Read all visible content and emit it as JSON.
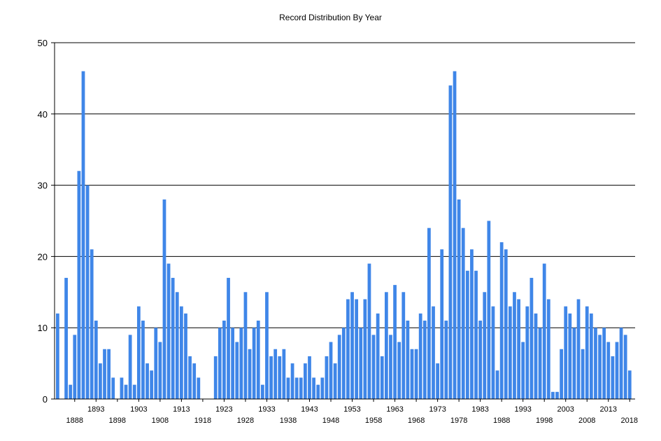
{
  "chart_data": {
    "type": "bar",
    "title": "Record Distribution By Year",
    "xlabel": "",
    "ylabel": "",
    "ylim": [
      0,
      50
    ],
    "yticks": [
      0,
      10,
      20,
      30,
      40,
      50
    ],
    "grid": "horizontal",
    "bar_color": "#3f86e8",
    "x_start": 1884,
    "x_end": 2018,
    "xtick_labels": [
      "1888",
      "1893",
      "1898",
      "1903",
      "1908",
      "1913",
      "1918",
      "1923",
      "1928",
      "1933",
      "1938",
      "1943",
      "1948",
      "1953",
      "1958",
      "1963",
      "1968",
      "1973",
      "1978",
      "1983",
      "1988",
      "1993",
      "1998",
      "2003",
      "2008",
      "2013",
      "2018"
    ],
    "points": [
      {
        "year": 1884,
        "value": 12
      },
      {
        "year": 1886,
        "value": 17
      },
      {
        "year": 1887,
        "value": 2
      },
      {
        "year": 1888,
        "value": 9
      },
      {
        "year": 1889,
        "value": 32
      },
      {
        "year": 1890,
        "value": 46
      },
      {
        "year": 1891,
        "value": 30
      },
      {
        "year": 1892,
        "value": 21
      },
      {
        "year": 1893,
        "value": 11
      },
      {
        "year": 1894,
        "value": 5
      },
      {
        "year": 1895,
        "value": 7
      },
      {
        "year": 1896,
        "value": 7
      },
      {
        "year": 1897,
        "value": 3
      },
      {
        "year": 1899,
        "value": 3
      },
      {
        "year": 1900,
        "value": 2
      },
      {
        "year": 1901,
        "value": 9
      },
      {
        "year": 1902,
        "value": 2
      },
      {
        "year": 1903,
        "value": 13
      },
      {
        "year": 1904,
        "value": 11
      },
      {
        "year": 1905,
        "value": 5
      },
      {
        "year": 1906,
        "value": 4
      },
      {
        "year": 1907,
        "value": 10
      },
      {
        "year": 1908,
        "value": 8
      },
      {
        "year": 1909,
        "value": 28
      },
      {
        "year": 1910,
        "value": 19
      },
      {
        "year": 1911,
        "value": 17
      },
      {
        "year": 1912,
        "value": 15
      },
      {
        "year": 1913,
        "value": 13
      },
      {
        "year": 1914,
        "value": 12
      },
      {
        "year": 1915,
        "value": 6
      },
      {
        "year": 1916,
        "value": 5
      },
      {
        "year": 1917,
        "value": 3
      },
      {
        "year": 1921,
        "value": 6
      },
      {
        "year": 1922,
        "value": 10
      },
      {
        "year": 1923,
        "value": 11
      },
      {
        "year": 1924,
        "value": 17
      },
      {
        "year": 1925,
        "value": 10
      },
      {
        "year": 1926,
        "value": 8
      },
      {
        "year": 1927,
        "value": 10
      },
      {
        "year": 1928,
        "value": 15
      },
      {
        "year": 1929,
        "value": 7
      },
      {
        "year": 1930,
        "value": 10
      },
      {
        "year": 1931,
        "value": 11
      },
      {
        "year": 1932,
        "value": 2
      },
      {
        "year": 1933,
        "value": 15
      },
      {
        "year": 1934,
        "value": 6
      },
      {
        "year": 1935,
        "value": 7
      },
      {
        "year": 1936,
        "value": 6
      },
      {
        "year": 1937,
        "value": 7
      },
      {
        "year": 1938,
        "value": 3
      },
      {
        "year": 1939,
        "value": 5
      },
      {
        "year": 1940,
        "value": 3
      },
      {
        "year": 1941,
        "value": 3
      },
      {
        "year": 1942,
        "value": 5
      },
      {
        "year": 1943,
        "value": 6
      },
      {
        "year": 1944,
        "value": 3
      },
      {
        "year": 1945,
        "value": 2
      },
      {
        "year": 1946,
        "value": 3
      },
      {
        "year": 1947,
        "value": 6
      },
      {
        "year": 1948,
        "value": 8
      },
      {
        "year": 1949,
        "value": 5
      },
      {
        "year": 1950,
        "value": 9
      },
      {
        "year": 1951,
        "value": 10
      },
      {
        "year": 1952,
        "value": 14
      },
      {
        "year": 1953,
        "value": 15
      },
      {
        "year": 1954,
        "value": 14
      },
      {
        "year": 1955,
        "value": 10
      },
      {
        "year": 1956,
        "value": 14
      },
      {
        "year": 1957,
        "value": 19
      },
      {
        "year": 1958,
        "value": 9
      },
      {
        "year": 1959,
        "value": 12
      },
      {
        "year": 1960,
        "value": 6
      },
      {
        "year": 1961,
        "value": 15
      },
      {
        "year": 1962,
        "value": 9
      },
      {
        "year": 1963,
        "value": 16
      },
      {
        "year": 1964,
        "value": 8
      },
      {
        "year": 1965,
        "value": 15
      },
      {
        "year": 1966,
        "value": 11
      },
      {
        "year": 1967,
        "value": 7
      },
      {
        "year": 1968,
        "value": 7
      },
      {
        "year": 1969,
        "value": 12
      },
      {
        "year": 1970,
        "value": 11
      },
      {
        "year": 1971,
        "value": 24
      },
      {
        "year": 1972,
        "value": 13
      },
      {
        "year": 1973,
        "value": 5
      },
      {
        "year": 1974,
        "value": 21
      },
      {
        "year": 1975,
        "value": 11
      },
      {
        "year": 1976,
        "value": 44
      },
      {
        "year": 1977,
        "value": 46
      },
      {
        "year": 1978,
        "value": 28
      },
      {
        "year": 1979,
        "value": 24
      },
      {
        "year": 1980,
        "value": 18
      },
      {
        "year": 1981,
        "value": 21
      },
      {
        "year": 1982,
        "value": 18
      },
      {
        "year": 1983,
        "value": 11
      },
      {
        "year": 1984,
        "value": 15
      },
      {
        "year": 1985,
        "value": 25
      },
      {
        "year": 1986,
        "value": 13
      },
      {
        "year": 1987,
        "value": 4
      },
      {
        "year": 1988,
        "value": 22
      },
      {
        "year": 1989,
        "value": 21
      },
      {
        "year": 1990,
        "value": 13
      },
      {
        "year": 1991,
        "value": 15
      },
      {
        "year": 1992,
        "value": 14
      },
      {
        "year": 1993,
        "value": 8
      },
      {
        "year": 1994,
        "value": 13
      },
      {
        "year": 1995,
        "value": 17
      },
      {
        "year": 1996,
        "value": 12
      },
      {
        "year": 1997,
        "value": 10
      },
      {
        "year": 1998,
        "value": 19
      },
      {
        "year": 1999,
        "value": 14
      },
      {
        "year": 2000,
        "value": 1
      },
      {
        "year": 2001,
        "value": 1
      },
      {
        "year": 2002,
        "value": 7
      },
      {
        "year": 2003,
        "value": 13
      },
      {
        "year": 2004,
        "value": 12
      },
      {
        "year": 2005,
        "value": 10
      },
      {
        "year": 2006,
        "value": 14
      },
      {
        "year": 2007,
        "value": 7
      },
      {
        "year": 2008,
        "value": 13
      },
      {
        "year": 2009,
        "value": 12
      },
      {
        "year": 2010,
        "value": 10
      },
      {
        "year": 2011,
        "value": 9
      },
      {
        "year": 2012,
        "value": 10
      },
      {
        "year": 2013,
        "value": 8
      },
      {
        "year": 2014,
        "value": 6
      },
      {
        "year": 2015,
        "value": 8
      },
      {
        "year": 2016,
        "value": 10
      },
      {
        "year": 2017,
        "value": 9
      },
      {
        "year": 2018,
        "value": 4
      }
    ]
  }
}
